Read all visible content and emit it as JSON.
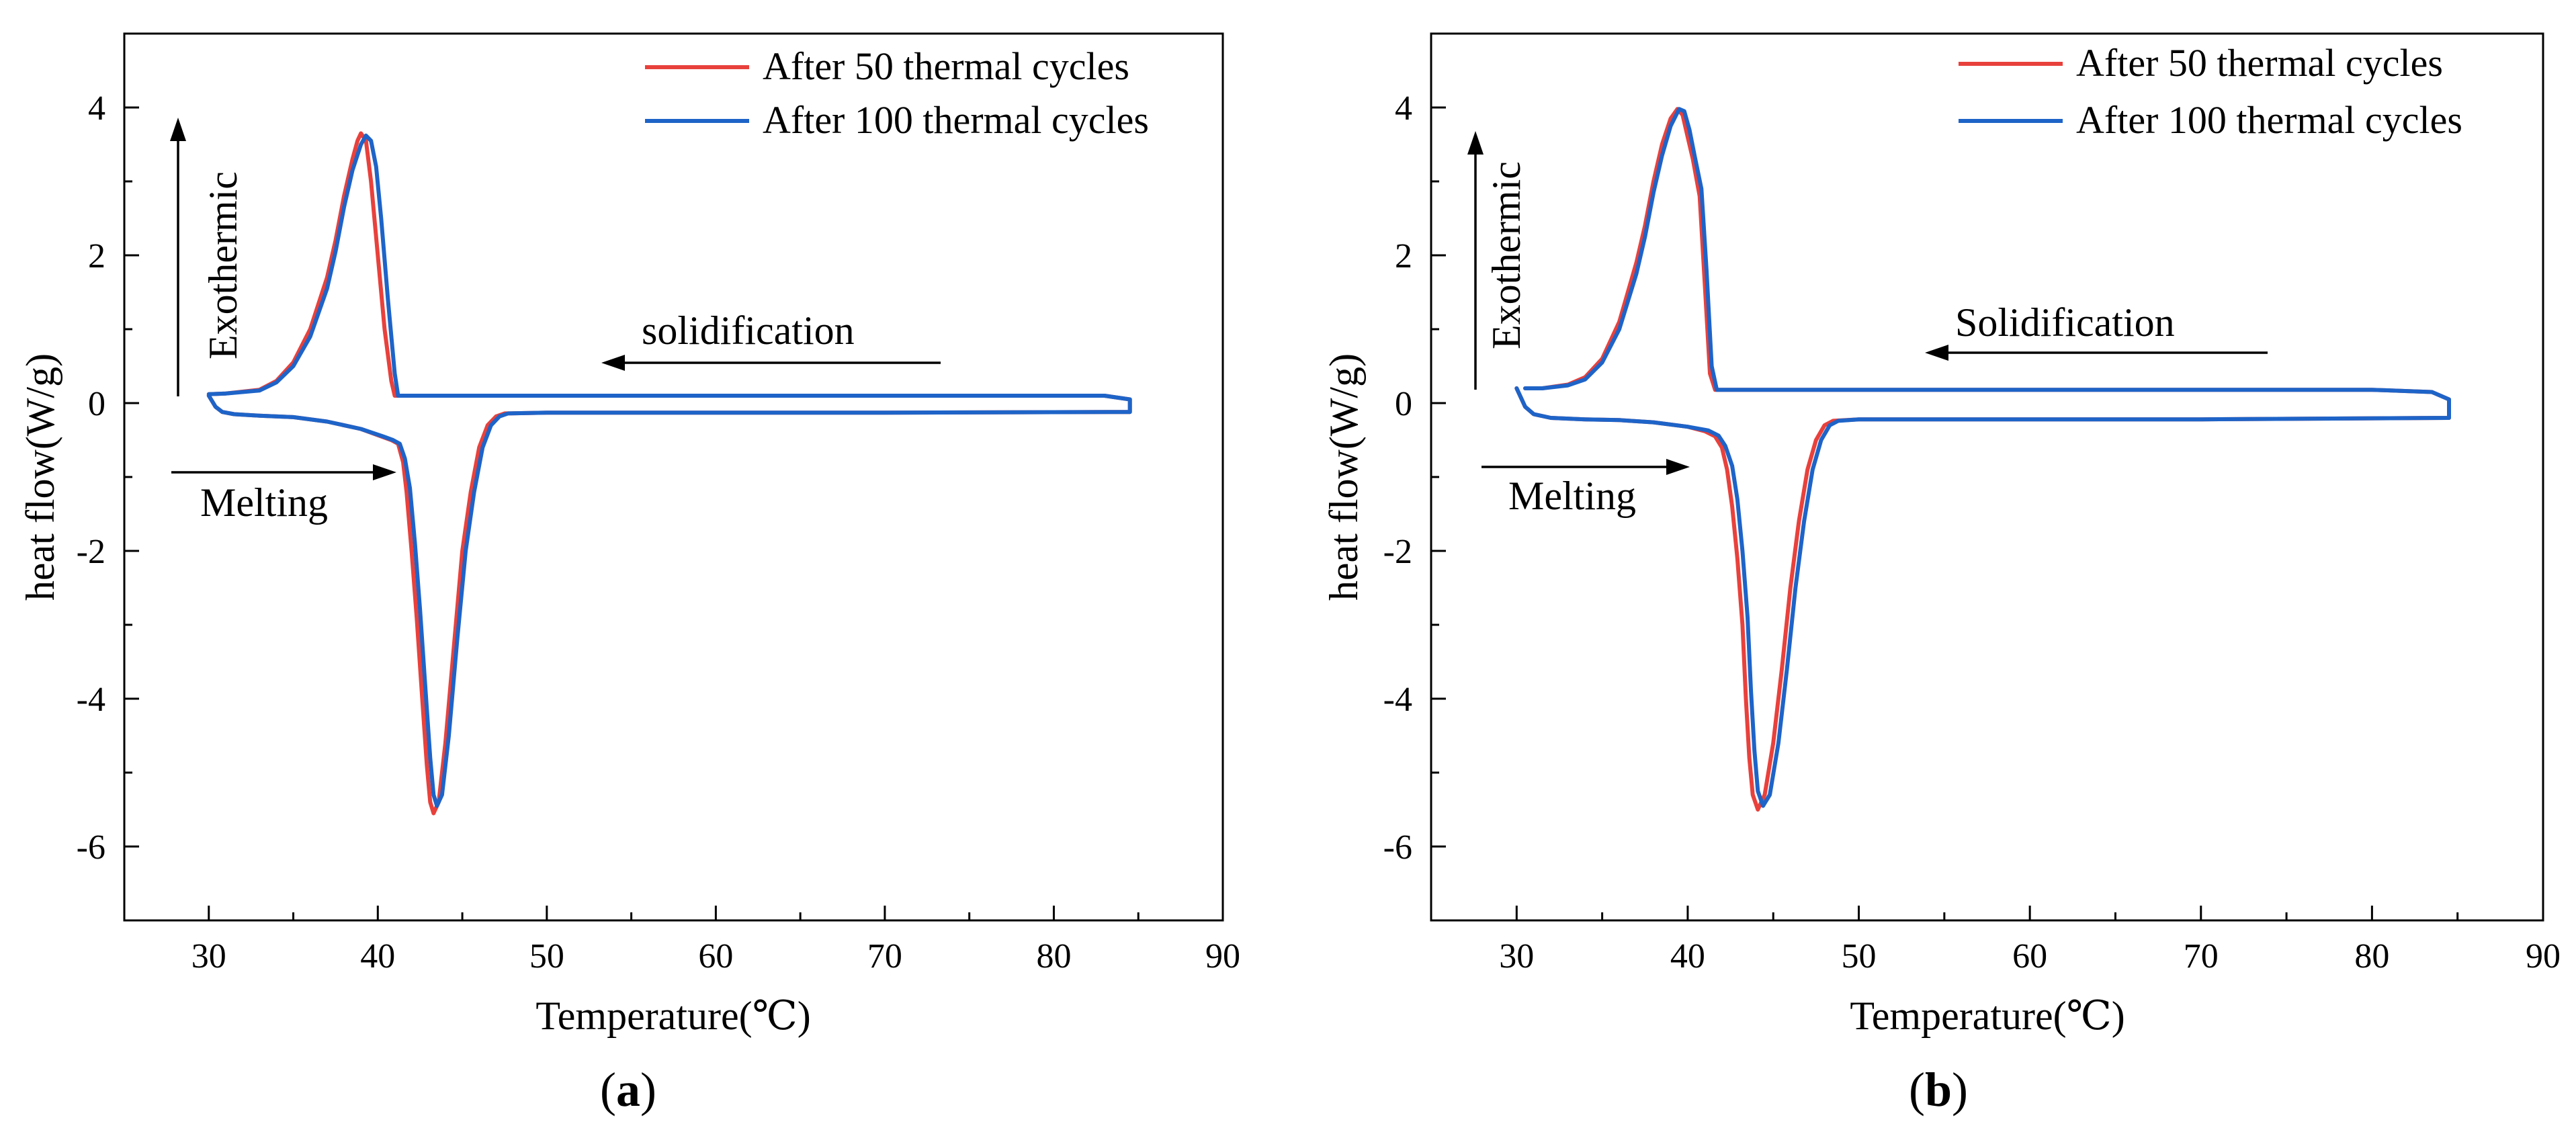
{
  "chart_data": [
    {
      "type": "line",
      "panel_label": "a",
      "title": "",
      "xlabel": "Temperature(℃)",
      "ylabel": "heat flow(W/g)",
      "xlim": [
        25,
        90
      ],
      "ylim": [
        -7,
        5
      ],
      "x_ticks": [
        30,
        40,
        50,
        60,
        70,
        80,
        90
      ],
      "y_ticks": [
        -6,
        -4,
        -2,
        0,
        2,
        4
      ],
      "grid": false,
      "legend_position": "top-right",
      "annotations": {
        "exothermic": "Exothermic",
        "solidification": "solidification",
        "melting": "Melting"
      },
      "series": [
        {
          "name": "After 50 thermal cycles",
          "color": "#e8413c",
          "x": [
            30.0,
            31.0,
            33.0,
            34.0,
            35.0,
            36.0,
            37.0,
            37.5,
            38.0,
            38.5,
            38.8,
            39.0,
            39.3,
            39.6,
            40.0,
            40.4,
            40.8,
            41.0,
            50.0,
            60.0,
            70.0,
            80.0,
            83.0,
            84.5,
            84.5,
            70.0,
            60.0,
            50.0,
            47.5,
            47.0,
            46.5,
            46.0,
            45.5,
            45.0,
            44.5,
            44.0,
            43.6,
            43.3,
            43.1,
            42.9,
            42.6,
            42.3,
            42.0,
            41.7,
            41.5,
            41.2,
            40.8,
            40.2,
            39.0,
            37.0,
            35.0,
            33.0,
            31.5,
            30.8,
            30.4,
            30.0
          ],
          "y": [
            0.12,
            0.13,
            0.18,
            0.3,
            0.55,
            1.0,
            1.7,
            2.2,
            2.8,
            3.3,
            3.55,
            3.65,
            3.55,
            3.0,
            2.0,
            1.0,
            0.3,
            0.1,
            0.1,
            0.1,
            0.1,
            0.1,
            0.1,
            0.05,
            -0.12,
            -0.13,
            -0.13,
            -0.13,
            -0.14,
            -0.18,
            -0.3,
            -0.6,
            -1.2,
            -2.0,
            -3.3,
            -4.6,
            -5.4,
            -5.55,
            -5.4,
            -4.9,
            -3.9,
            -2.9,
            -2.0,
            -1.2,
            -0.8,
            -0.55,
            -0.5,
            -0.45,
            -0.35,
            -0.25,
            -0.19,
            -0.17,
            -0.15,
            -0.12,
            -0.05,
            0.1
          ]
        },
        {
          "name": "After 100 thermal cycles",
          "color": "#1e64c8",
          "x": [
            30.0,
            31.0,
            33.0,
            34.0,
            35.0,
            36.0,
            37.0,
            37.5,
            38.0,
            38.5,
            39.0,
            39.3,
            39.6,
            39.9,
            40.2,
            40.6,
            41.0,
            41.2,
            50.0,
            60.0,
            70.0,
            80.0,
            83.0,
            84.5,
            84.5,
            70.0,
            60.0,
            50.0,
            47.7,
            47.2,
            46.7,
            46.2,
            45.7,
            45.2,
            44.7,
            44.2,
            43.8,
            43.5,
            43.3,
            43.1,
            42.8,
            42.5,
            42.2,
            41.9,
            41.6,
            41.3,
            40.9,
            40.3,
            39.0,
            37.0,
            35.0,
            33.0,
            31.5,
            30.8,
            30.4,
            30.0
          ],
          "y": [
            0.12,
            0.13,
            0.17,
            0.28,
            0.5,
            0.9,
            1.55,
            2.05,
            2.65,
            3.15,
            3.5,
            3.62,
            3.55,
            3.2,
            2.5,
            1.4,
            0.4,
            0.1,
            0.1,
            0.1,
            0.1,
            0.1,
            0.1,
            0.05,
            -0.12,
            -0.13,
            -0.13,
            -0.13,
            -0.14,
            -0.18,
            -0.3,
            -0.6,
            -1.2,
            -2.0,
            -3.2,
            -4.5,
            -5.3,
            -5.45,
            -5.3,
            -4.8,
            -3.8,
            -2.8,
            -1.9,
            -1.15,
            -0.75,
            -0.55,
            -0.5,
            -0.45,
            -0.35,
            -0.25,
            -0.19,
            -0.17,
            -0.15,
            -0.12,
            -0.05,
            0.1
          ]
        }
      ]
    },
    {
      "type": "line",
      "panel_label": "b",
      "title": "",
      "xlabel": "Temperature(℃)",
      "ylabel": "heat flow(W/g)",
      "xlim": [
        25,
        90
      ],
      "ylim": [
        -7,
        5
      ],
      "x_ticks": [
        30,
        40,
        50,
        60,
        70,
        80,
        90
      ],
      "y_ticks": [
        -6,
        -4,
        -2,
        0,
        2,
        4
      ],
      "grid": false,
      "legend_position": "top-right",
      "annotations": {
        "exothermic": "Exothermic",
        "solidification": "Solidification",
        "melting": "Melting"
      },
      "series": [
        {
          "name": "After 50 thermal cycles",
          "color": "#e8413c",
          "x": [
            30.5,
            31.5,
            33.0,
            34.0,
            35.0,
            36.0,
            37.0,
            37.5,
            38.0,
            38.5,
            39.0,
            39.4,
            39.7,
            40.0,
            40.3,
            40.7,
            41.0,
            41.3,
            41.6,
            50.0,
            60.0,
            70.0,
            80.0,
            83.5,
            84.5,
            84.5,
            70.0,
            60.0,
            50.0,
            48.5,
            48.0,
            47.5,
            47.0,
            46.5,
            46.0,
            45.5,
            45.0,
            44.5,
            44.1,
            43.8,
            43.6,
            43.4,
            43.2,
            42.9,
            42.6,
            42.3,
            42.0,
            41.6,
            41.0,
            40.0,
            38.0,
            36.0,
            34.0,
            32.0,
            31.0,
            30.5,
            30.0
          ],
          "y": [
            0.2,
            0.2,
            0.25,
            0.35,
            0.6,
            1.1,
            1.9,
            2.4,
            3.0,
            3.5,
            3.85,
            3.98,
            3.9,
            3.6,
            3.3,
            2.8,
            1.6,
            0.4,
            0.18,
            0.18,
            0.18,
            0.18,
            0.18,
            0.15,
            0.05,
            -0.2,
            -0.22,
            -0.22,
            -0.22,
            -0.24,
            -0.3,
            -0.5,
            -0.9,
            -1.6,
            -2.5,
            -3.6,
            -4.6,
            -5.3,
            -5.5,
            -5.3,
            -4.8,
            -4.0,
            -3.0,
            -2.1,
            -1.4,
            -0.9,
            -0.6,
            -0.45,
            -0.38,
            -0.32,
            -0.26,
            -0.23,
            -0.22,
            -0.2,
            -0.15,
            -0.05,
            0.2
          ]
        },
        {
          "name": "After 100 thermal cycles",
          "color": "#1e64c8",
          "x": [
            30.5,
            31.5,
            33.0,
            34.0,
            35.0,
            36.0,
            37.0,
            37.5,
            38.0,
            38.5,
            39.0,
            39.5,
            39.8,
            40.1,
            40.4,
            40.8,
            41.1,
            41.4,
            41.7,
            50.0,
            60.0,
            70.0,
            80.0,
            83.5,
            84.5,
            84.5,
            70.0,
            60.0,
            50.0,
            48.8,
            48.3,
            47.8,
            47.3,
            46.8,
            46.3,
            45.8,
            45.3,
            44.8,
            44.4,
            44.1,
            43.9,
            43.7,
            43.5,
            43.2,
            42.9,
            42.6,
            42.2,
            41.8,
            41.2,
            40.0,
            38.0,
            36.0,
            34.0,
            32.0,
            31.0,
            30.5,
            30.0
          ],
          "y": [
            0.2,
            0.2,
            0.24,
            0.32,
            0.55,
            1.0,
            1.75,
            2.25,
            2.85,
            3.35,
            3.75,
            3.98,
            3.95,
            3.7,
            3.35,
            2.9,
            1.8,
            0.5,
            0.18,
            0.18,
            0.18,
            0.18,
            0.18,
            0.15,
            0.05,
            -0.2,
            -0.22,
            -0.22,
            -0.22,
            -0.24,
            -0.3,
            -0.5,
            -0.9,
            -1.6,
            -2.5,
            -3.6,
            -4.6,
            -5.3,
            -5.45,
            -5.25,
            -4.7,
            -3.9,
            -2.9,
            -2.0,
            -1.3,
            -0.85,
            -0.58,
            -0.44,
            -0.37,
            -0.32,
            -0.26,
            -0.23,
            -0.22,
            -0.2,
            -0.15,
            -0.05,
            0.2
          ]
        }
      ]
    }
  ]
}
